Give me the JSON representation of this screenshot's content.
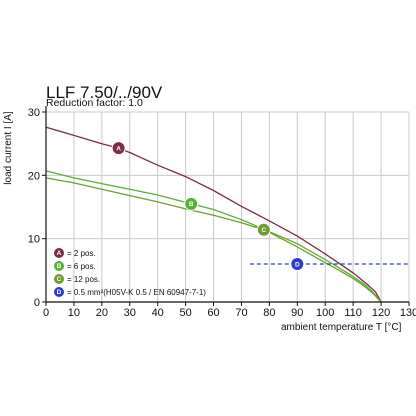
{
  "chart_data": {
    "type": "line",
    "title": "LLF 7.50/../90V",
    "subtitle": "Reduction factor: 1.0",
    "xlabel": "ambient temperature T [°C]",
    "ylabel": "load current I [A]",
    "xlim": [
      0,
      130
    ],
    "ylim": [
      0,
      30
    ],
    "xticks": [
      0,
      10,
      20,
      30,
      40,
      50,
      60,
      70,
      80,
      90,
      100,
      110,
      120,
      130
    ],
    "yticks": [
      0,
      10,
      20,
      30
    ],
    "grid": true,
    "legend_position": "bottom-left",
    "series": [
      {
        "marker": "A",
        "legend": "= 2 pos.",
        "color": "#7a2d44",
        "x": [
          0,
          10,
          20,
          26,
          30,
          40,
          50,
          60,
          70,
          80,
          90,
          100,
          105,
          110,
          115,
          118,
          120
        ],
        "y": [
          27.6,
          26.3,
          25.0,
          24.3,
          23.6,
          21.6,
          19.8,
          17.6,
          15.1,
          12.8,
          10.4,
          7.6,
          6.1,
          4.6,
          2.8,
          1.6,
          0
        ],
        "marker_at": [
          26,
          24.3
        ]
      },
      {
        "marker": "B",
        "legend": "= 6 pos.",
        "color": "#58b032",
        "x": [
          0,
          10,
          20,
          30,
          40,
          52,
          60,
          70,
          78,
          80,
          90,
          100,
          105,
          110,
          114,
          117,
          120
        ],
        "y": [
          20.7,
          19.6,
          18.7,
          17.8,
          16.9,
          15.5,
          14.6,
          13.0,
          11.5,
          11.1,
          9.2,
          6.7,
          5.4,
          4.0,
          2.8,
          1.6,
          0
        ],
        "marker_at": [
          52,
          15.5
        ]
      },
      {
        "marker": "C",
        "legend": "= 12 pos.",
        "color": "#6f9e2c",
        "x": [
          0,
          10,
          20,
          30,
          40,
          50,
          60,
          70,
          78,
          80,
          90,
          100,
          105,
          110,
          114,
          117,
          120
        ],
        "y": [
          19.6,
          18.8,
          17.8,
          16.8,
          15.8,
          14.7,
          13.7,
          12.5,
          11.4,
          11.0,
          8.7,
          6.2,
          5.0,
          3.7,
          2.5,
          1.4,
          0
        ],
        "marker_at": [
          78,
          11.4
        ]
      },
      {
        "marker": "D",
        "legend": "= 0.5 mm²(H05V-K 0.5 / EN 60947-7-1)",
        "color": "#2b3bd1",
        "line_style": "dashed",
        "x": [
          73,
          130
        ],
        "y": [
          6,
          6
        ],
        "marker_at": [
          90,
          6
        ]
      }
    ]
  }
}
